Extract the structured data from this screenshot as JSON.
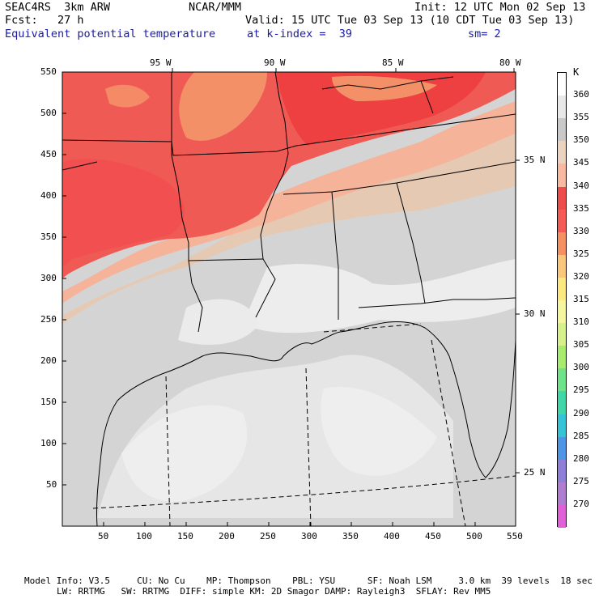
{
  "header": {
    "left_line1": "SEAC4RS  3km ARW",
    "center_line1": "NCAR/MMM",
    "right_line1": "Init: 12 UTC Mon 02 Sep 13",
    "left_line2": "Fcst:   27 h",
    "right_line2": "Valid: 15 UTC Tue 03 Sep 13 (10 CDT Tue 03 Sep 13)",
    "field_name": "Equivalent potential temperature",
    "field_level": "at k-index =  39",
    "smoothing": "sm= 2"
  },
  "map": {
    "lon_labels": [
      "95 W",
      "90 W",
      "85 W",
      "80 W"
    ],
    "lat_labels": [
      "35 N",
      "30 N",
      "25 N"
    ],
    "x_ticks": [
      "50",
      "100",
      "150",
      "200",
      "250",
      "300",
      "350",
      "400",
      "450",
      "500",
      "550"
    ],
    "y_ticks": [
      "550",
      "500",
      "450",
      "400",
      "350",
      "300",
      "250",
      "200",
      "150",
      "100",
      "50"
    ]
  },
  "colorbar": {
    "unit": "K",
    "levels": [
      {
        "label": "360",
        "color": "#ffffff"
      },
      {
        "label": "355",
        "color": "#e8e8e8"
      },
      {
        "label": "350",
        "color": "#c9c9c9"
      },
      {
        "label": "345",
        "color": "#ead3bf"
      },
      {
        "label": "340",
        "color": "#f7b9a0"
      },
      {
        "label": "335",
        "color": "#ee4b4b"
      },
      {
        "label": "330",
        "color": "#f55a55"
      },
      {
        "label": "325",
        "color": "#f59060"
      },
      {
        "label": "320",
        "color": "#f9c77a"
      },
      {
        "label": "315",
        "color": "#fbe97f"
      },
      {
        "label": "310",
        "color": "#f4f59c"
      },
      {
        "label": "305",
        "color": "#d6f08a"
      },
      {
        "label": "300",
        "color": "#a8ec6d"
      },
      {
        "label": "295",
        "color": "#6fe38a"
      },
      {
        "label": "290",
        "color": "#3fd6a8"
      },
      {
        "label": "285",
        "color": "#35c3d6"
      },
      {
        "label": "280",
        "color": "#4f95e6"
      },
      {
        "label": "275",
        "color": "#8f7fd8"
      },
      {
        "label": "270",
        "color": "#b07ed0"
      },
      {
        "label": "",
        "color": "#e060d8"
      }
    ]
  },
  "footer": {
    "line1": "Model Info: V3.5     CU: No Cu    MP: Thompson    PBL: YSU      SF: Noah LSM     3.0 km  39 levels  18 sec",
    "line2": "LW: RRTMG   SW: RRTMG  DIFF: simple KM: 2D Smagor DAMP: Rayleigh3  SFLAY: Rev MM5"
  }
}
